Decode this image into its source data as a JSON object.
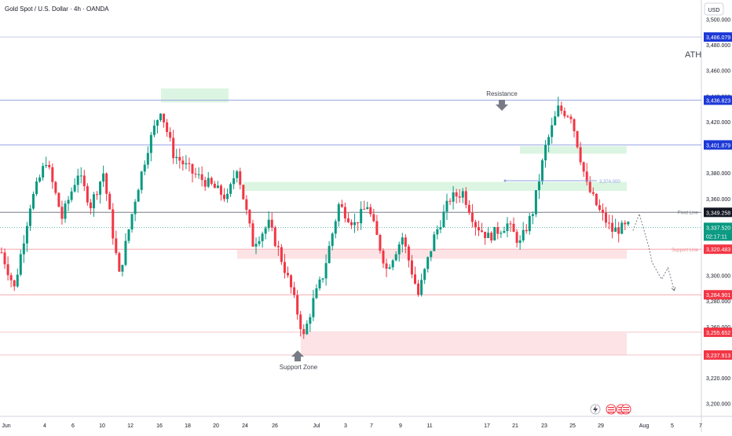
{
  "header": {
    "symbol_title": "Gold Spot / U.S. Dollar · 4h · OANDA",
    "currency": "USD"
  },
  "labels": {
    "ath": "ATH",
    "resistance": "Resistance",
    "support_zone": "Support Zone",
    "pivot_line": "Pivot Line",
    "support_line": "Support Line",
    "measure_value": "3,374.000",
    "countdown": "02:17:11"
  },
  "colors": {
    "up": "#089981",
    "down": "#f23645",
    "blue_level": "#1c38d6",
    "zone_green": "#dcf5e2",
    "zone_red": "#fde3e5",
    "pivot": "#787b86"
  },
  "chart_data": {
    "type": "candlestick",
    "title": "Gold Spot / U.S. Dollar · 4h · OANDA",
    "y_axis": {
      "ticks": [
        "3,500.000",
        "3,480.000",
        "3,460.000",
        "3,440.000",
        "3,420.000",
        "3,400.000",
        "3,380.000",
        "3,360.000",
        "3,340.000",
        "3,320.000",
        "3,300.000",
        "3,280.000",
        "3,260.000",
        "3,240.000",
        "3,220.000",
        "3,200.000"
      ],
      "range": [
        3190,
        3515
      ]
    },
    "x_axis": {
      "ticks": [
        "Jun",
        "4",
        "6",
        "10",
        "12",
        "16",
        "18",
        "20",
        "24",
        "26",
        "Jul",
        "3",
        "7",
        "9",
        "11",
        "17",
        "21",
        "23",
        "25",
        "29",
        "Aug",
        "5",
        "7"
      ]
    },
    "price_levels": [
      {
        "name": "ath",
        "value": 3486.079,
        "label": "3,486.079",
        "color": "#1c38d6"
      },
      {
        "name": "resistance",
        "value": 3436.823,
        "label": "3,436.823",
        "color": "#1c38d6"
      },
      {
        "name": "level-3401",
        "value": 3401.879,
        "label": "3,401.879",
        "color": "#1c38d6"
      },
      {
        "name": "pivot",
        "value": 3349.258,
        "label": "3,349.258",
        "color": "#131722"
      },
      {
        "name": "current",
        "value": 3337.52,
        "label": "3,337.520",
        "color": "#089981"
      },
      {
        "name": "support-line",
        "value": 3320.483,
        "label": "3,320.483",
        "color": "#f23645"
      },
      {
        "name": "level-3284",
        "value": 3284.901,
        "label": "3,284.901",
        "color": "#f23645"
      },
      {
        "name": "level-3255",
        "value": 3255.652,
        "label": "3,255.652",
        "color": "#f23645"
      },
      {
        "name": "level-3237",
        "value": 3237.913,
        "label": "3,237.913",
        "color": "#f23645"
      }
    ],
    "zones": [
      {
        "name": "supply-zone-june",
        "type": "green",
        "x_from": "15",
        "x_to": "21",
        "y_top": 3446,
        "y_bottom": 3435
      },
      {
        "name": "mid-zone",
        "type": "green",
        "x_from": "24",
        "x_to": "Jul 27",
        "y_top": 3373,
        "y_bottom": 3366
      },
      {
        "name": "zone-3401",
        "type": "green",
        "x_from": "Jul 21",
        "x_to": "Jul 27",
        "y_top": 3401,
        "y_bottom": 3395
      },
      {
        "name": "support-line-zone",
        "type": "red",
        "x_from": "24",
        "x_to": "Jul 27",
        "y_top": 3320,
        "y_bottom": 3313
      },
      {
        "name": "support-zone",
        "type": "red",
        "x_from": "27",
        "x_to": "Jul 27",
        "y_top": 3255,
        "y_bottom": 3238
      }
    ],
    "anchors": [
      {
        "t": 0,
        "p": 3318
      },
      {
        "t": 4,
        "p": 3290
      },
      {
        "t": 9,
        "p": 3355
      },
      {
        "t": 14,
        "p": 3390
      },
      {
        "t": 19,
        "p": 3345
      },
      {
        "t": 24,
        "p": 3380
      },
      {
        "t": 28,
        "p": 3355
      },
      {
        "t": 32,
        "p": 3380
      },
      {
        "t": 37,
        "p": 3300
      },
      {
        "t": 42,
        "p": 3360
      },
      {
        "t": 46,
        "p": 3400
      },
      {
        "t": 50,
        "p": 3430
      },
      {
        "t": 54,
        "p": 3395
      },
      {
        "t": 60,
        "p": 3380
      },
      {
        "t": 66,
        "p": 3370
      },
      {
        "t": 71,
        "p": 3360
      },
      {
        "t": 74,
        "p": 3385
      },
      {
        "t": 79,
        "p": 3325
      },
      {
        "t": 84,
        "p": 3340
      },
      {
        "t": 87,
        "p": 3320
      },
      {
        "t": 91,
        "p": 3290
      },
      {
        "t": 95,
        "p": 3252
      },
      {
        "t": 98,
        "p": 3280
      },
      {
        "t": 101,
        "p": 3300
      },
      {
        "t": 106,
        "p": 3355
      },
      {
        "t": 111,
        "p": 3340
      },
      {
        "t": 115,
        "p": 3355
      },
      {
        "t": 121,
        "p": 3305
      },
      {
        "t": 126,
        "p": 3330
      },
      {
        "t": 131,
        "p": 3285
      },
      {
        "t": 136,
        "p": 3330
      },
      {
        "t": 141,
        "p": 3360
      },
      {
        "t": 145,
        "p": 3365
      },
      {
        "t": 149,
        "p": 3340
      },
      {
        "t": 153,
        "p": 3330
      },
      {
        "t": 159,
        "p": 3340
      },
      {
        "t": 163,
        "p": 3325
      },
      {
        "t": 167,
        "p": 3350
      },
      {
        "t": 171,
        "p": 3400
      },
      {
        "t": 175,
        "p": 3430
      },
      {
        "t": 179,
        "p": 3425
      },
      {
        "t": 184,
        "p": 3370
      },
      {
        "t": 188,
        "p": 3350
      },
      {
        "t": 192,
        "p": 3335
      },
      {
        "t": 197,
        "p": 3338
      }
    ],
    "projection": [
      {
        "t": 199,
        "p": 3335
      },
      {
        "t": 201,
        "p": 3348
      },
      {
        "t": 204,
        "p": 3322
      },
      {
        "t": 205,
        "p": 3310
      },
      {
        "t": 208,
        "p": 3297
      },
      {
        "t": 210,
        "p": 3306
      },
      {
        "t": 212,
        "p": 3288
      }
    ]
  }
}
